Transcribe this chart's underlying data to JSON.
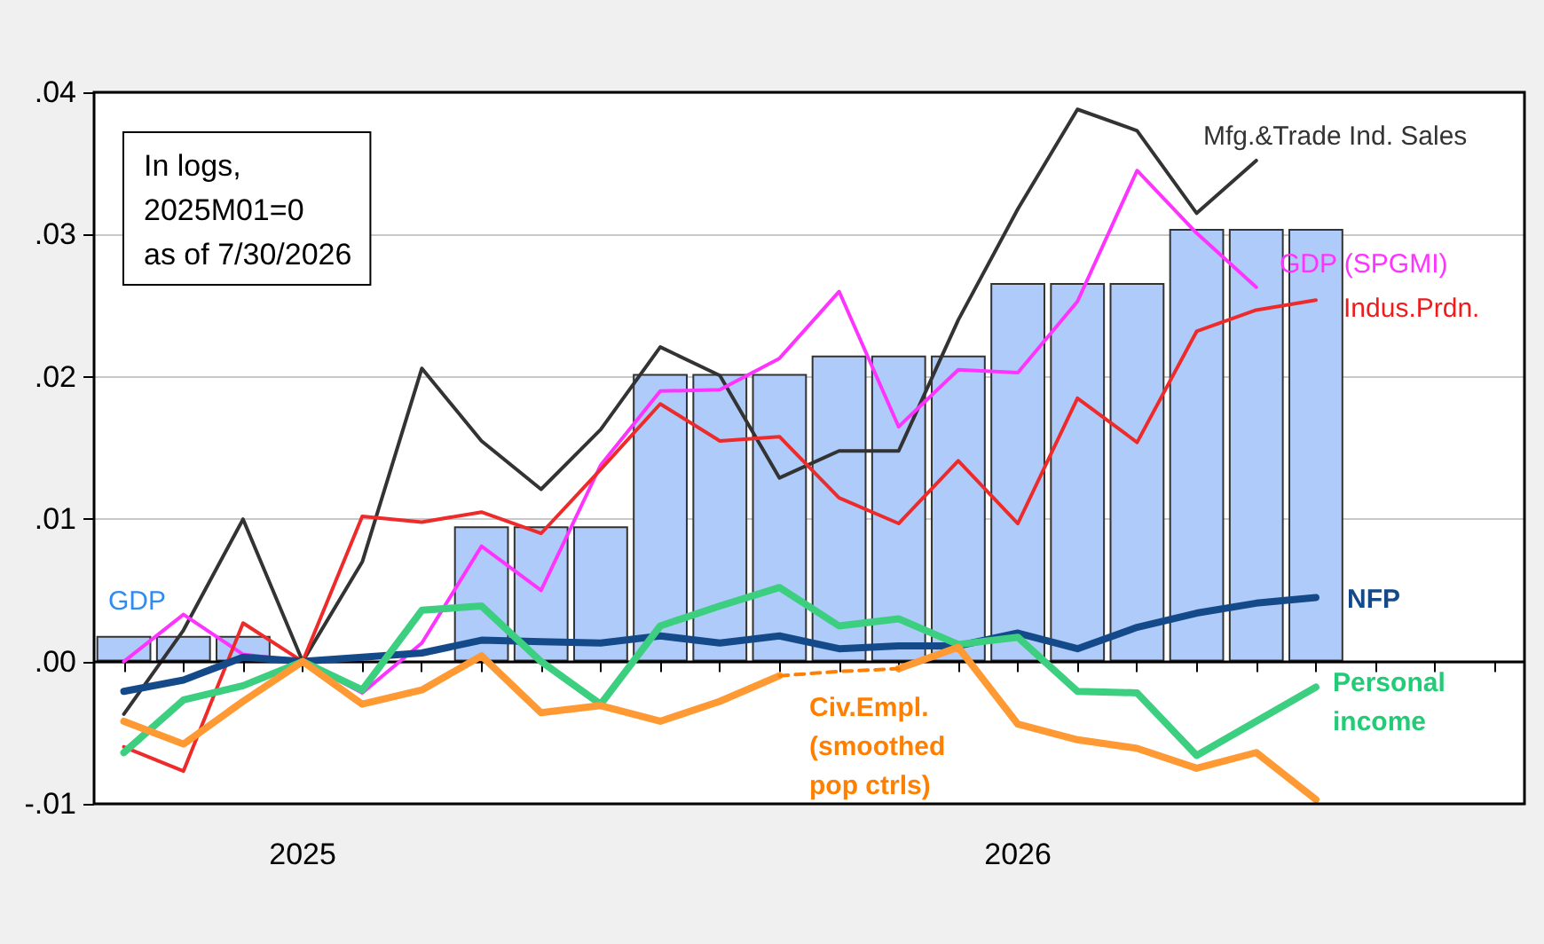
{
  "chart_data": {
    "type": "line",
    "categories": [
      null,
      null,
      null,
      "2025",
      null,
      null,
      null,
      null,
      null,
      null,
      null,
      null,
      null,
      null,
      null,
      "2026",
      null,
      null,
      null,
      null,
      null,
      null,
      null,
      null
    ],
    "series": [
      {
        "name": "GDP",
        "type": "bar",
        "color": "#aecbfa",
        "values": [
          0.0018,
          0.0018,
          0.0018,
          null,
          null,
          null,
          0.0095,
          0.0095,
          0.0095,
          0.0202,
          0.0202,
          0.0202,
          0.0215,
          0.0215,
          0.0215,
          0.0266,
          0.0266,
          0.0266,
          0.0304,
          0.0304,
          0.0304,
          null,
          null,
          null
        ]
      },
      {
        "name": "Mfg.&Trade Ind. Sales",
        "color": "#333333",
        "values": [
          -0.0037,
          0.0022,
          0.01,
          0,
          0.007,
          0.0206,
          0.0155,
          0.0121,
          0.0163,
          0.0221,
          0.0201,
          0.0129,
          0.0148,
          0.0148,
          0.024,
          0.0318,
          0.0388,
          0.0373,
          0.0315,
          0.0352,
          null,
          null,
          null,
          null
        ]
      },
      {
        "name": "GDP (SPGMI)",
        "color": "#ff33ff",
        "values": [
          0,
          0.0033,
          0.0005,
          0,
          -0.0022,
          0.0013,
          0.0081,
          0.005,
          0.0138,
          0.019,
          0.0191,
          0.0213,
          0.026,
          0.0165,
          0.0205,
          0.0203,
          0.0253,
          0.0345,
          0.0301,
          0.0263,
          null,
          null,
          null,
          null
        ]
      },
      {
        "name": "Indus.Prdn.",
        "color": "#ee2b2b",
        "values": [
          -0.006,
          -0.0077,
          0.0027,
          0,
          0.0102,
          0.0098,
          0.0105,
          0.009,
          0.0135,
          0.0181,
          0.0155,
          0.0158,
          0.0115,
          0.0097,
          0.0141,
          0.0097,
          0.0185,
          0.0154,
          0.0232,
          0.0247,
          0.0254,
          null,
          null,
          null
        ]
      },
      {
        "name": "NFP",
        "color": "#154a8a",
        "values": [
          -0.0021,
          -0.0013,
          0.0003,
          0,
          0.0003,
          0.0006,
          0.0015,
          0.0014,
          0.0013,
          0.0018,
          0.0013,
          0.0018,
          0.0009,
          0.0011,
          0.0011,
          0.002,
          0.0009,
          0.0024,
          0.0034,
          0.0041,
          0.0045,
          null,
          null,
          null
        ]
      },
      {
        "name": "Personal income",
        "color": "#3ccf80",
        "values": [
          -0.0064,
          -0.0027,
          -0.0017,
          0,
          -0.002,
          0.0036,
          0.0039,
          0.0,
          -0.003,
          0.0025,
          0.0039,
          0.0052,
          0.0025,
          0.003,
          0.0012,
          0.0017,
          -0.0021,
          -0.0022,
          -0.0066,
          -0.0042,
          -0.0018,
          null,
          null,
          null
        ]
      },
      {
        "name": "Civ.Empl. (smoothed pop ctrls)",
        "color": "#ff9933",
        "values": [
          -0.0042,
          -0.0058,
          -0.0028,
          0,
          -0.003,
          -0.002,
          0.0004,
          -0.0036,
          -0.0031,
          -0.0042,
          -0.0028,
          -0.001,
          null,
          -0.0005,
          0.001,
          -0.0044,
          -0.0055,
          -0.0061,
          -0.0075,
          -0.0064,
          -0.0097,
          null,
          null,
          null
        ]
      },
      {
        "color": "#ff8000",
        "line_style": "dashed",
        "values": [
          null,
          null,
          null,
          null,
          null,
          null,
          null,
          null,
          null,
          null,
          null,
          -0.001,
          -0.0007,
          -0.0005,
          null,
          null,
          null,
          null,
          null,
          null,
          null,
          null,
          null,
          null
        ]
      }
    ],
    "ylim": [
      -0.01,
      0.04
    ],
    "yticks": [
      {
        "value": -0.01,
        "label": "-.01"
      },
      {
        "value": 0,
        "label": ".00"
      },
      {
        "value": 0.01,
        "label": ".01"
      },
      {
        "value": 0.02,
        "label": ".02"
      },
      {
        "value": 0.03,
        "label": ".03"
      },
      {
        "value": 0.04,
        "label": ".04"
      }
    ],
    "ref_lines": [
      {
        "axis": "y",
        "value": 0,
        "color": "#000000"
      }
    ],
    "annotations": [
      "In logs,\n2025M01=0\nas of 7/30/2026"
    ],
    "grid": "y",
    "marker": "none",
    "line_style": "solid"
  }
}
